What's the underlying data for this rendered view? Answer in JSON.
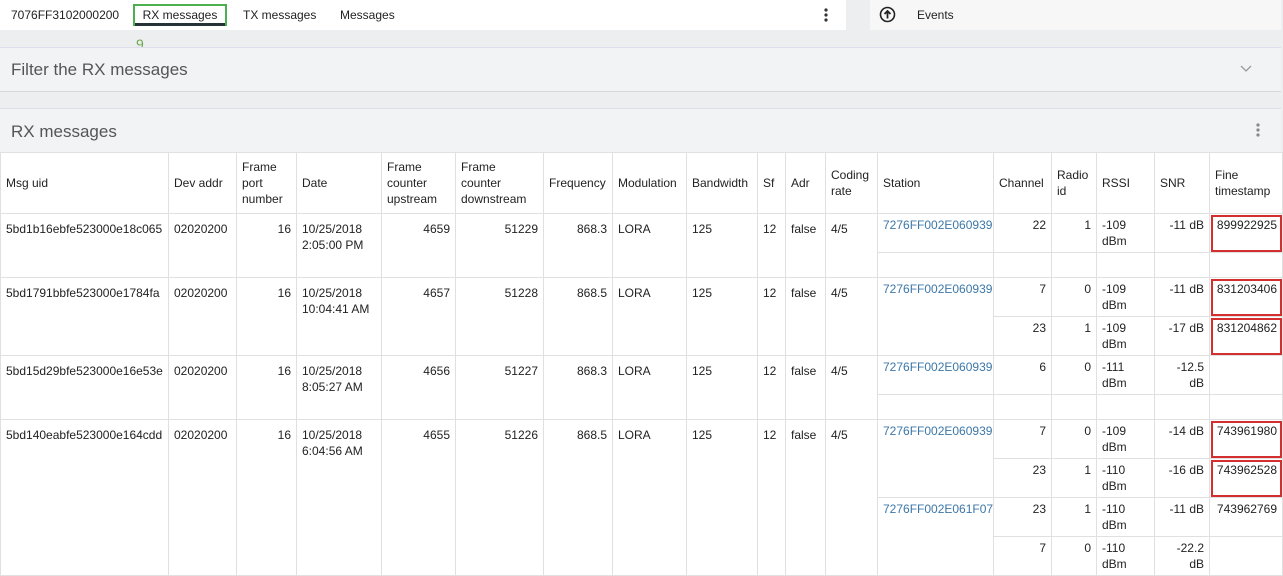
{
  "header": {
    "device": "7076FF3102000200",
    "tabs": [
      "RX messages",
      "TX messages",
      "Messages"
    ],
    "annotation": "9.",
    "events": "Events"
  },
  "filter_panel": {
    "title": "Filter the RX messages"
  },
  "rx_panel": {
    "title": "RX messages"
  },
  "table": {
    "columns": [
      "Msg uid",
      "Dev addr",
      "Frame port number",
      "Date",
      "Frame counter upstream",
      "Frame counter downstream",
      "Frequency",
      "Modulation",
      "Bandwidth",
      "Sf",
      "Adr",
      "Coding rate",
      "Station",
      "Channel",
      "Radio id",
      "RSSI",
      "SNR",
      "Fine timestamp"
    ],
    "rows": [
      {
        "msg_uid": "5bd1b16ebfe523000e18c065",
        "dev_addr": "02020200",
        "frame_port": 16,
        "date": "10/25/2018 2:05:00 PM",
        "fcnt_up": 4659,
        "fcnt_down": 51229,
        "frequency": 868.3,
        "modulation": "LORA",
        "bandwidth": 125,
        "sf": 12,
        "adr": "false",
        "coding_rate": "4/5",
        "stations": [
          {
            "station": "7276FF002E060939",
            "entries": [
              {
                "channel": 22,
                "radio_id": 1,
                "rssi": "-109 dBm",
                "snr": "-11 dB",
                "fine_timestamp": 899922925
              }
            ]
          }
        ]
      },
      {
        "msg_uid": "5bd1791bbfe523000e1784fa",
        "dev_addr": "02020200",
        "frame_port": 16,
        "date": "10/25/2018 10:04:41 AM",
        "fcnt_up": 4657,
        "fcnt_down": 51228,
        "frequency": 868.5,
        "modulation": "LORA",
        "bandwidth": 125,
        "sf": 12,
        "adr": "false",
        "coding_rate": "4/5",
        "stations": [
          {
            "station": "7276FF002E060939",
            "entries": [
              {
                "channel": 7,
                "radio_id": 0,
                "rssi": "-109 dBm",
                "snr": "-11 dB",
                "fine_timestamp": 831203406
              },
              {
                "channel": 23,
                "radio_id": 1,
                "rssi": "-109 dBm",
                "snr": "-17 dB",
                "fine_timestamp": 831204862
              }
            ]
          }
        ]
      },
      {
        "msg_uid": "5bd15d29bfe523000e16e53e",
        "dev_addr": "02020200",
        "frame_port": 16,
        "date": "10/25/2018 8:05:27 AM",
        "fcnt_up": 4656,
        "fcnt_down": 51227,
        "frequency": 868.3,
        "modulation": "LORA",
        "bandwidth": 125,
        "sf": 12,
        "adr": "false",
        "coding_rate": "4/5",
        "stations": [
          {
            "station": "7276FF002E060939",
            "entries": [
              {
                "channel": 6,
                "radio_id": 0,
                "rssi": "-111 dBm",
                "snr": "-12.5 dB"
              }
            ]
          }
        ]
      },
      {
        "msg_uid": "5bd140eabfe523000e164cdd",
        "dev_addr": "02020200",
        "frame_port": 16,
        "date": "10/25/2018 6:04:56 AM",
        "fcnt_up": 4655,
        "fcnt_down": 51226,
        "frequency": 868.5,
        "modulation": "LORA",
        "bandwidth": 125,
        "sf": 12,
        "adr": "false",
        "coding_rate": "4/5",
        "stations": [
          {
            "station": "7276FF002E060939",
            "entries": [
              {
                "channel": 7,
                "radio_id": 0,
                "rssi": "-109 dBm",
                "snr": "-14 dB",
                "fine_timestamp": 743961980
              },
              {
                "channel": 23,
                "radio_id": 1,
                "rssi": "-110 dBm",
                "snr": "-16 dB",
                "fine_timestamp": 743962528
              }
            ]
          },
          {
            "station": "7276FF002E061F07",
            "entries": [
              {
                "channel": 23,
                "radio_id": 1,
                "rssi": "-110 dBm",
                "snr": "-11 dB",
                "fine_timestamp": 743962769
              },
              {
                "channel": 7,
                "radio_id": 0,
                "rssi": "-110 dBm",
                "snr": "-22.2 dB"
              }
            ]
          }
        ]
      }
    ]
  }
}
